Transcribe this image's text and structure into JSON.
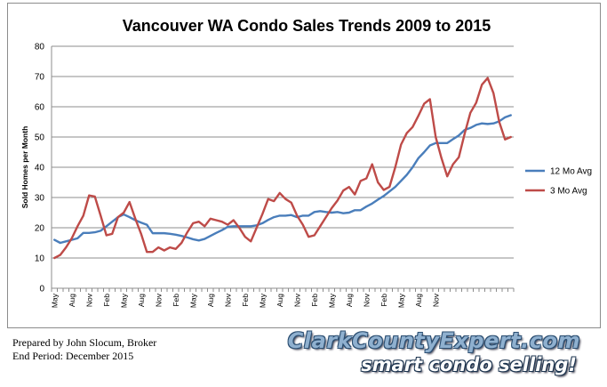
{
  "chart_data": {
    "type": "line",
    "title": "Vancouver WA Condo Sales Trends 2009 to 2015",
    "ylabel": "Sold Homes per Month",
    "xlabel": "",
    "ylim": [
      0,
      80
    ],
    "yticks": [
      0,
      10,
      20,
      30,
      40,
      50,
      60,
      70,
      80
    ],
    "grid": true,
    "legend_position": "right",
    "x_tick_labels": [
      "May",
      "Aug",
      "Nov",
      "Feb",
      "May",
      "Aug",
      "Nov",
      "Feb",
      "May",
      "Aug",
      "Nov",
      "Feb",
      "May",
      "Aug",
      "Nov",
      "Feb",
      "May",
      "Aug",
      "Nov",
      "Feb",
      "May",
      "Aug",
      "Nov"
    ],
    "x_months": [
      "2009-05",
      "2009-06",
      "2009-07",
      "2009-08",
      "2009-09",
      "2009-10",
      "2009-11",
      "2009-12",
      "2010-01",
      "2010-02",
      "2010-03",
      "2010-04",
      "2010-05",
      "2010-06",
      "2010-07",
      "2010-08",
      "2010-09",
      "2010-10",
      "2010-11",
      "2010-12",
      "2011-01",
      "2011-02",
      "2011-03",
      "2011-04",
      "2011-05",
      "2011-06",
      "2011-07",
      "2011-08",
      "2011-09",
      "2011-10",
      "2011-11",
      "2011-12",
      "2012-01",
      "2012-02",
      "2012-03",
      "2012-04",
      "2012-05",
      "2012-06",
      "2012-07",
      "2012-08",
      "2012-09",
      "2012-10",
      "2012-11",
      "2012-12",
      "2013-01",
      "2013-02",
      "2013-03",
      "2013-04",
      "2013-05",
      "2013-06",
      "2013-07",
      "2013-08",
      "2013-09",
      "2013-10",
      "2013-11",
      "2013-12",
      "2014-01",
      "2014-02",
      "2014-03",
      "2014-04",
      "2014-05",
      "2014-06",
      "2014-07",
      "2014-08",
      "2014-09",
      "2014-10",
      "2014-11",
      "2014-12",
      "2015-01",
      "2015-02",
      "2015-03",
      "2015-04",
      "2015-05",
      "2015-06",
      "2015-07",
      "2015-08",
      "2015-09",
      "2015-10",
      "2015-11",
      "2015-12"
    ],
    "series": [
      {
        "name": "12 Mo Avg",
        "color": "#4a7ebb",
        "values": [
          16,
          15,
          15.5,
          16,
          16.5,
          18.3,
          18.3,
          18.5,
          19,
          20.5,
          22,
          23.5,
          24.4,
          23.5,
          22.5,
          21.7,
          21,
          18.2,
          18.2,
          18.2,
          18,
          17.7,
          17.3,
          16.8,
          16.2,
          15.8,
          16.3,
          17.3,
          18.3,
          19.2,
          20.3,
          20.5,
          20.5,
          20.5,
          20.5,
          20.8,
          21.5,
          22.6,
          23.5,
          24,
          24,
          24.2,
          23.5,
          24,
          24,
          25.2,
          25.5,
          25.2,
          25,
          25.2,
          24.8,
          25,
          25.8,
          25.8,
          27,
          28,
          29.3,
          30.5,
          32,
          33.5,
          35.5,
          37.5,
          40,
          43,
          45,
          47.2,
          48,
          48,
          48,
          49.3,
          50.5,
          52.3,
          53,
          54,
          54.5,
          54.3,
          54.5,
          55.2,
          56.5,
          57.2
        ]
      },
      {
        "name": "3 Mo Avg",
        "color": "#be4b48",
        "values": [
          10,
          11,
          13.5,
          16.5,
          20.5,
          24,
          30.7,
          30.3,
          24,
          17.5,
          18,
          23.5,
          25,
          28.5,
          23,
          18,
          12,
          12,
          13.5,
          12.5,
          13.5,
          13,
          15,
          18.5,
          21.5,
          22,
          20.5,
          23,
          22.5,
          22,
          21,
          22.5,
          20,
          17,
          15.5,
          20,
          24.5,
          29.5,
          28.8,
          31.5,
          29.5,
          28.3,
          24,
          21,
          17,
          17.5,
          20.5,
          23.5,
          26.5,
          29,
          32.3,
          33.5,
          31,
          35.5,
          36.3,
          41,
          35,
          32.5,
          33.5,
          40,
          47.5,
          51.3,
          53.3,
          57,
          61,
          62.5,
          50,
          43,
          37,
          41,
          43.3,
          51,
          58,
          61.3,
          67.3,
          69.5,
          64.5,
          55,
          49.2,
          50
        ]
      }
    ]
  },
  "footer": {
    "line1": "Prepared by John Slocum, Broker",
    "line2": "End Period: December  2015"
  },
  "brand": {
    "site": "ClarkCountyExpert.com",
    "tagline": "smart condo selling!"
  }
}
